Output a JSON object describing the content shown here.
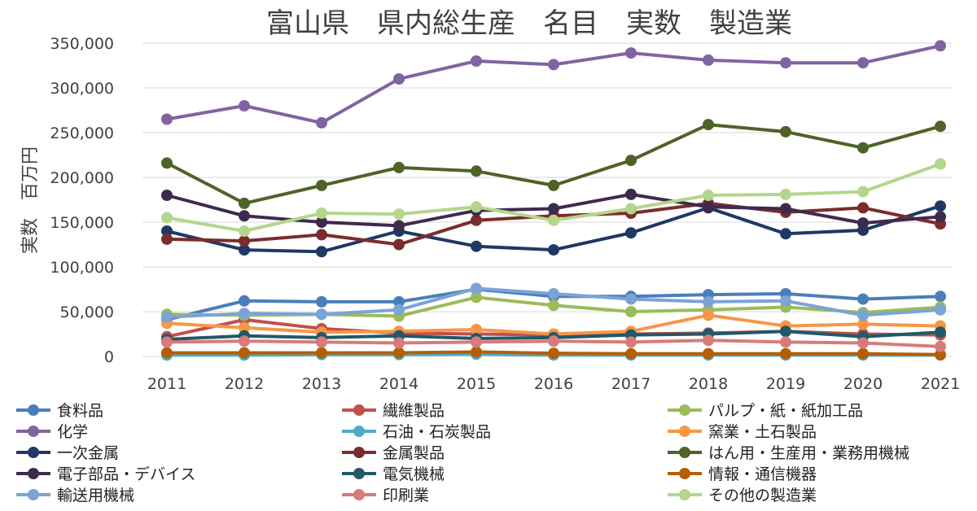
{
  "chart_data": {
    "type": "line",
    "title": "富山県　県内総生産　名目　実数　製造業",
    "xlabel": "",
    "ylabel": "実数　百万円",
    "ylim": [
      0,
      350000
    ],
    "yticks": [
      0,
      50000,
      100000,
      150000,
      200000,
      250000,
      300000,
      350000
    ],
    "ytick_labels": [
      "0",
      "50,000",
      "100,000",
      "150,000",
      "200,000",
      "250,000",
      "300,000",
      "350,000"
    ],
    "grid": true,
    "legend_position": "bottom",
    "categories": [
      "2011",
      "2012",
      "2013",
      "2014",
      "2015",
      "2016",
      "2017",
      "2018",
      "2019",
      "2020",
      "2021"
    ],
    "series": [
      {
        "name": "食料品",
        "color": "#4a7ebb",
        "values": [
          41000,
          62000,
          61000,
          61000,
          75000,
          67000,
          67000,
          69000,
          70000,
          64000,
          67000
        ]
      },
      {
        "name": "繊維製品",
        "color": "#c0504d",
        "values": [
          22000,
          41000,
          31000,
          26000,
          25000,
          24000,
          25000,
          26000,
          28000,
          25000,
          24000
        ]
      },
      {
        "name": "パルプ・紙・紙加工品",
        "color": "#9bbb59",
        "values": [
          47000,
          46000,
          47000,
          45000,
          66000,
          57000,
          50000,
          52000,
          55000,
          49000,
          55000
        ]
      },
      {
        "name": "化学",
        "color": "#8064a2",
        "values": [
          265000,
          280000,
          261000,
          310000,
          330000,
          326000,
          339000,
          331000,
          328000,
          328000,
          347000
        ]
      },
      {
        "name": "石油・石炭製品",
        "color": "#4bacc6",
        "values": [
          1500,
          1500,
          2000,
          2000,
          2500,
          1500,
          1500,
          1500,
          1500,
          1500,
          1500
        ]
      },
      {
        "name": "窯業・土石製品",
        "color": "#f79646",
        "values": [
          37000,
          32000,
          27000,
          28000,
          30000,
          25000,
          28000,
          46000,
          34000,
          36000,
          34000
        ]
      },
      {
        "name": "一次金属",
        "color": "#1f3864",
        "values": [
          140000,
          119000,
          117000,
          140000,
          123000,
          119000,
          138000,
          166000,
          137000,
          141000,
          168000
        ]
      },
      {
        "name": "金属製品",
        "color": "#7b2c2c",
        "values": [
          131000,
          129000,
          136000,
          125000,
          152000,
          157000,
          160000,
          171000,
          161000,
          166000,
          148000
        ]
      },
      {
        "name": "はん用・生産用・業務用機械",
        "color": "#4f6228",
        "values": [
          216000,
          171000,
          191000,
          211000,
          207000,
          191000,
          219000,
          259000,
          251000,
          233000,
          257000
        ]
      },
      {
        "name": "電子部品・デバイス",
        "color": "#3f2a4f",
        "values": [
          180000,
          157000,
          150000,
          146000,
          163000,
          165000,
          181000,
          167000,
          165000,
          149000,
          156000
        ]
      },
      {
        "name": "電気機械",
        "color": "#215968",
        "values": [
          19000,
          23000,
          21000,
          23000,
          20000,
          21000,
          24000,
          25000,
          28000,
          22000,
          27000
        ]
      },
      {
        "name": "情報・通信機器",
        "color": "#b45f06",
        "values": [
          4000,
          4000,
          4000,
          4000,
          5000,
          3500,
          3000,
          3000,
          3000,
          3000,
          2000
        ]
      },
      {
        "name": "輸送用機械",
        "color": "#7ba3d6",
        "values": [
          44000,
          48000,
          47000,
          52000,
          76000,
          70000,
          64000,
          61000,
          62000,
          46000,
          52000
        ]
      },
      {
        "name": "印刷業",
        "color": "#d77b7b",
        "values": [
          16000,
          17000,
          16000,
          15000,
          16000,
          17000,
          16000,
          18000,
          16000,
          15000,
          11000
        ]
      },
      {
        "name": "その他の製造業",
        "color": "#b3d68c",
        "values": [
          155000,
          140000,
          160000,
          159000,
          167000,
          152000,
          165000,
          180000,
          181000,
          184000,
          215000
        ]
      }
    ]
  }
}
